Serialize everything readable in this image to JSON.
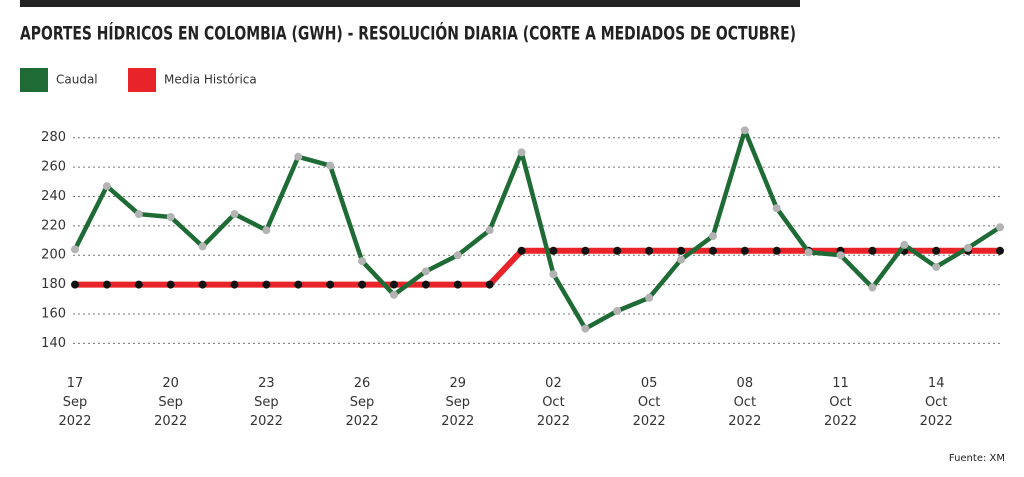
{
  "chart_data": {
    "type": "line",
    "title": "APORTES HÍDRICOS EN COLOMBIA (GWH) - RESOLUCIÓN DIARIA (CORTE A MEDIADOS DE OCTUBRE)",
    "categories": [
      "17 Sep 2022",
      null,
      null,
      "20 Sep 2022",
      null,
      null,
      "23 Sep 2022",
      null,
      null,
      "26 Sep 2022",
      null,
      null,
      "29 Sep 2022",
      null,
      null,
      "02 Oct 2022",
      null,
      null,
      "05 Oct 2022",
      null,
      null,
      "08 Oct 2022",
      null,
      null,
      "11 Oct 2022",
      null,
      null,
      "14 Oct 2022",
      null,
      null
    ],
    "series": [
      {
        "name": "Caudal",
        "color": "#1e6b35",
        "marker_color": "#b3b3b3",
        "values": [
          204,
          247,
          228,
          226,
          206,
          228,
          217,
          267,
          261,
          196,
          173,
          189,
          200,
          217,
          270,
          187,
          150,
          162,
          171,
          197,
          213,
          285,
          232,
          202,
          200,
          178,
          207,
          192,
          205,
          219
        ]
      },
      {
        "name": "Media Histórica",
        "color": "#e8232a",
        "marker_color": "#111111",
        "values": [
          180,
          180,
          180,
          180,
          180,
          180,
          180,
          180,
          180,
          180,
          180,
          180,
          180,
          180,
          203,
          203,
          203,
          203,
          203,
          203,
          203,
          203,
          203,
          203,
          203,
          203,
          203,
          203,
          203,
          203
        ]
      }
    ],
    "ylim": [
      130,
      290
    ],
    "yticks": [
      140,
      160,
      180,
      200,
      220,
      240,
      260,
      280
    ],
    "grid": true,
    "source": "Fuente: XM"
  }
}
